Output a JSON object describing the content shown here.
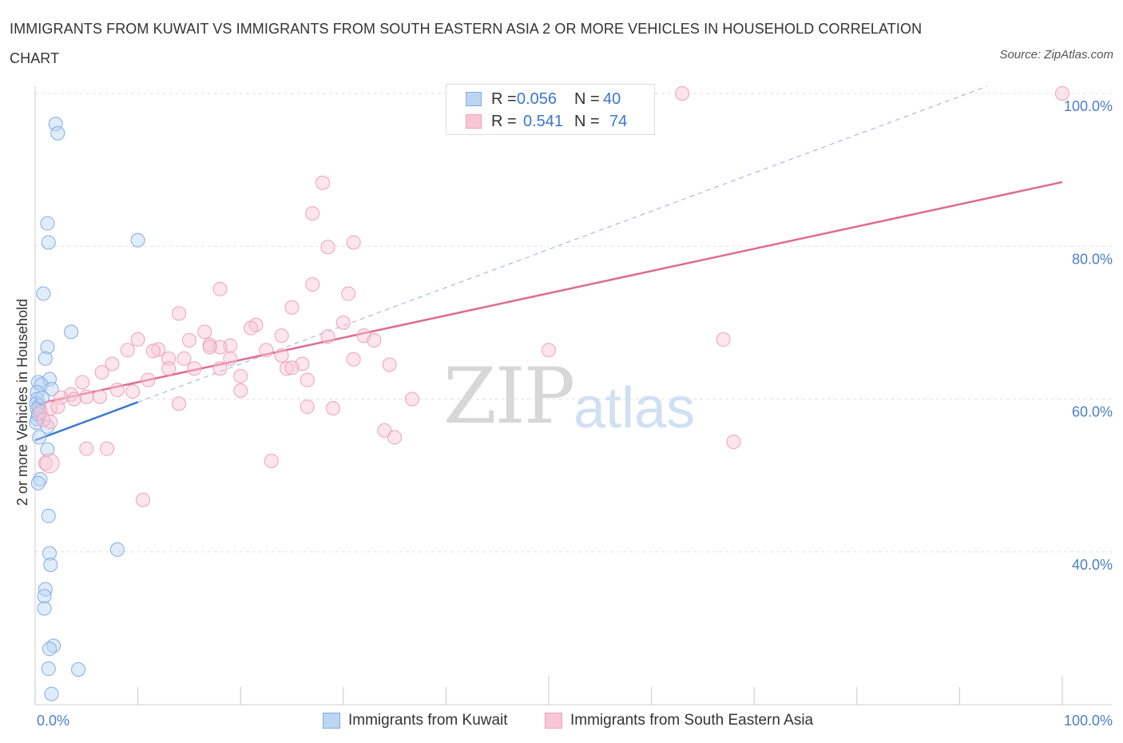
{
  "header": {
    "title": "IMMIGRANTS FROM KUWAIT VS IMMIGRANTS FROM SOUTH EASTERN ASIA 2 OR MORE VEHICLES IN HOUSEHOLD CORRELATION CHART",
    "source": "Source: ZipAtlas.com"
  },
  "watermark": {
    "zip": "ZIP",
    "atlas": "atlas"
  },
  "legend": {
    "rows": [
      {
        "r_label": "R =",
        "r_value": "0.056",
        "n_label": "N =",
        "n_value": "40",
        "color": "#7eaee6"
      },
      {
        "r_label": "R =",
        "r_value": "0.541",
        "n_label": "N =",
        "n_value": "74",
        "color": "#f0a0b8"
      }
    ]
  },
  "bottom_legend": {
    "items": [
      {
        "label": "Immigrants from Kuwait",
        "color": "#7eaee6"
      },
      {
        "label": "Immigrants from South Eastern Asia",
        "color": "#f0a0b8"
      }
    ]
  },
  "chart_data": {
    "type": "scatter",
    "title": "IMMIGRANTS FROM KUWAIT VS IMMIGRANTS FROM SOUTH EASTERN ASIA 2 OR MORE VEHICLES IN HOUSEHOLD CORRELATION CHART",
    "xlabel": "",
    "ylabel": "2 or more Vehicles in Household",
    "xlim": [
      0,
      100
    ],
    "ylim": [
      20,
      100
    ],
    "x_tick_labels": [
      "0.0%",
      "100.0%"
    ],
    "y_ticks": [
      40,
      60,
      80,
      100
    ],
    "y_tick_labels": [
      "40.0%",
      "60.0%",
      "80.0%",
      "100.0%"
    ],
    "grid": true,
    "series": [
      {
        "name": "Immigrants from Kuwait",
        "color": "#7eaee6",
        "trend": {
          "x0": 0,
          "y0": 54.6,
          "x1": 10,
          "y1": 59.6,
          "style": "solid",
          "color": "#3a78d0"
        },
        "trend_extension": {
          "x0": 10,
          "y0": 59.6,
          "x1": 100,
          "y1": 104.6,
          "style": "dashed",
          "color": "#8db4e0"
        },
        "points": [
          [
            2.0,
            96.0
          ],
          [
            2.2,
            94.8
          ],
          [
            1.2,
            83.0
          ],
          [
            1.3,
            80.5
          ],
          [
            10.0,
            80.8
          ],
          [
            0.8,
            73.8
          ],
          [
            3.5,
            68.8
          ],
          [
            1.2,
            66.8
          ],
          [
            1.0,
            65.3
          ],
          [
            1.4,
            62.6
          ],
          [
            0.3,
            62.2
          ],
          [
            0.6,
            61.9
          ],
          [
            1.6,
            61.3
          ],
          [
            0.2,
            60.9
          ],
          [
            0.2,
            60.0
          ],
          [
            0.1,
            59.4
          ],
          [
            0.4,
            59.1
          ],
          [
            0.2,
            58.7
          ],
          [
            0.5,
            58.3
          ],
          [
            0.2,
            57.4
          ],
          [
            0.1,
            56.9
          ],
          [
            1.2,
            56.4
          ],
          [
            0.4,
            55.0
          ],
          [
            1.2,
            53.4
          ],
          [
            0.5,
            49.5
          ],
          [
            0.3,
            49.0
          ],
          [
            1.3,
            44.7
          ],
          [
            1.4,
            39.8
          ],
          [
            1.5,
            38.3
          ],
          [
            8.0,
            40.3
          ],
          [
            1.0,
            35.1
          ],
          [
            0.9,
            34.2
          ],
          [
            0.9,
            32.6
          ],
          [
            1.8,
            27.7
          ],
          [
            1.4,
            27.3
          ],
          [
            1.3,
            24.7
          ],
          [
            4.2,
            24.6
          ],
          [
            1.6,
            21.4
          ],
          [
            0.7,
            60.2
          ],
          [
            0.3,
            58.0
          ]
        ]
      },
      {
        "name": "Immigrants from South Eastern Asia",
        "color": "#f0a0b8",
        "trend": {
          "x0": 0,
          "y0": 59.3,
          "x1": 100,
          "y1": 88.4,
          "style": "solid",
          "color": "#e06a92"
        },
        "points": [
          [
            63.0,
            100.0
          ],
          [
            100.0,
            100.0
          ],
          [
            28.0,
            88.3
          ],
          [
            27.0,
            84.3
          ],
          [
            28.5,
            79.9
          ],
          [
            31.0,
            80.5
          ],
          [
            18.0,
            74.4
          ],
          [
            27.0,
            75.0
          ],
          [
            30.5,
            73.8
          ],
          [
            14.0,
            71.2
          ],
          [
            25.0,
            72.0
          ],
          [
            21.5,
            69.7
          ],
          [
            30.0,
            70.0
          ],
          [
            16.5,
            68.8
          ],
          [
            21.0,
            69.3
          ],
          [
            32.0,
            68.3
          ],
          [
            10.0,
            67.8
          ],
          [
            15.0,
            67.7
          ],
          [
            24.0,
            68.3
          ],
          [
            28.5,
            68.2
          ],
          [
            33.0,
            67.7
          ],
          [
            17.0,
            67.1
          ],
          [
            19.0,
            67.0
          ],
          [
            18.0,
            66.8
          ],
          [
            12.0,
            66.5
          ],
          [
            17.0,
            66.8
          ],
          [
            9.0,
            66.4
          ],
          [
            11.5,
            66.3
          ],
          [
            13.0,
            65.3
          ],
          [
            22.5,
            66.4
          ],
          [
            14.5,
            65.3
          ],
          [
            19.0,
            65.3
          ],
          [
            24.0,
            65.7
          ],
          [
            31.0,
            65.2
          ],
          [
            50.0,
            66.4
          ],
          [
            67.0,
            67.8
          ],
          [
            7.5,
            64.6
          ],
          [
            13.0,
            64.0
          ],
          [
            15.5,
            64.0
          ],
          [
            18.0,
            64.0
          ],
          [
            24.5,
            64.0
          ],
          [
            26.0,
            64.6
          ],
          [
            25.0,
            64.1
          ],
          [
            34.5,
            64.5
          ],
          [
            6.5,
            63.5
          ],
          [
            20.0,
            63.0
          ],
          [
            26.5,
            62.5
          ],
          [
            11.0,
            62.5
          ],
          [
            4.6,
            62.2
          ],
          [
            8.0,
            61.2
          ],
          [
            9.5,
            61.0
          ],
          [
            20.0,
            61.1
          ],
          [
            3.5,
            60.6
          ],
          [
            5.0,
            60.3
          ],
          [
            6.3,
            60.3
          ],
          [
            2.5,
            60.2
          ],
          [
            3.8,
            60.0
          ],
          [
            36.7,
            60.0
          ],
          [
            14.0,
            59.4
          ],
          [
            26.5,
            59.0
          ],
          [
            29.0,
            58.8
          ],
          [
            1.5,
            58.8
          ],
          [
            0.5,
            58.3
          ],
          [
            1.5,
            57.0
          ],
          [
            0.8,
            57.3
          ],
          [
            34.0,
            55.9
          ],
          [
            35.0,
            55.0
          ],
          [
            5.0,
            53.5
          ],
          [
            7.0,
            53.5
          ],
          [
            68.0,
            54.4
          ],
          [
            23.0,
            51.9
          ],
          [
            1.0,
            51.6
          ],
          [
            10.5,
            46.8
          ],
          [
            2.2,
            59.0
          ]
        ]
      }
    ]
  }
}
